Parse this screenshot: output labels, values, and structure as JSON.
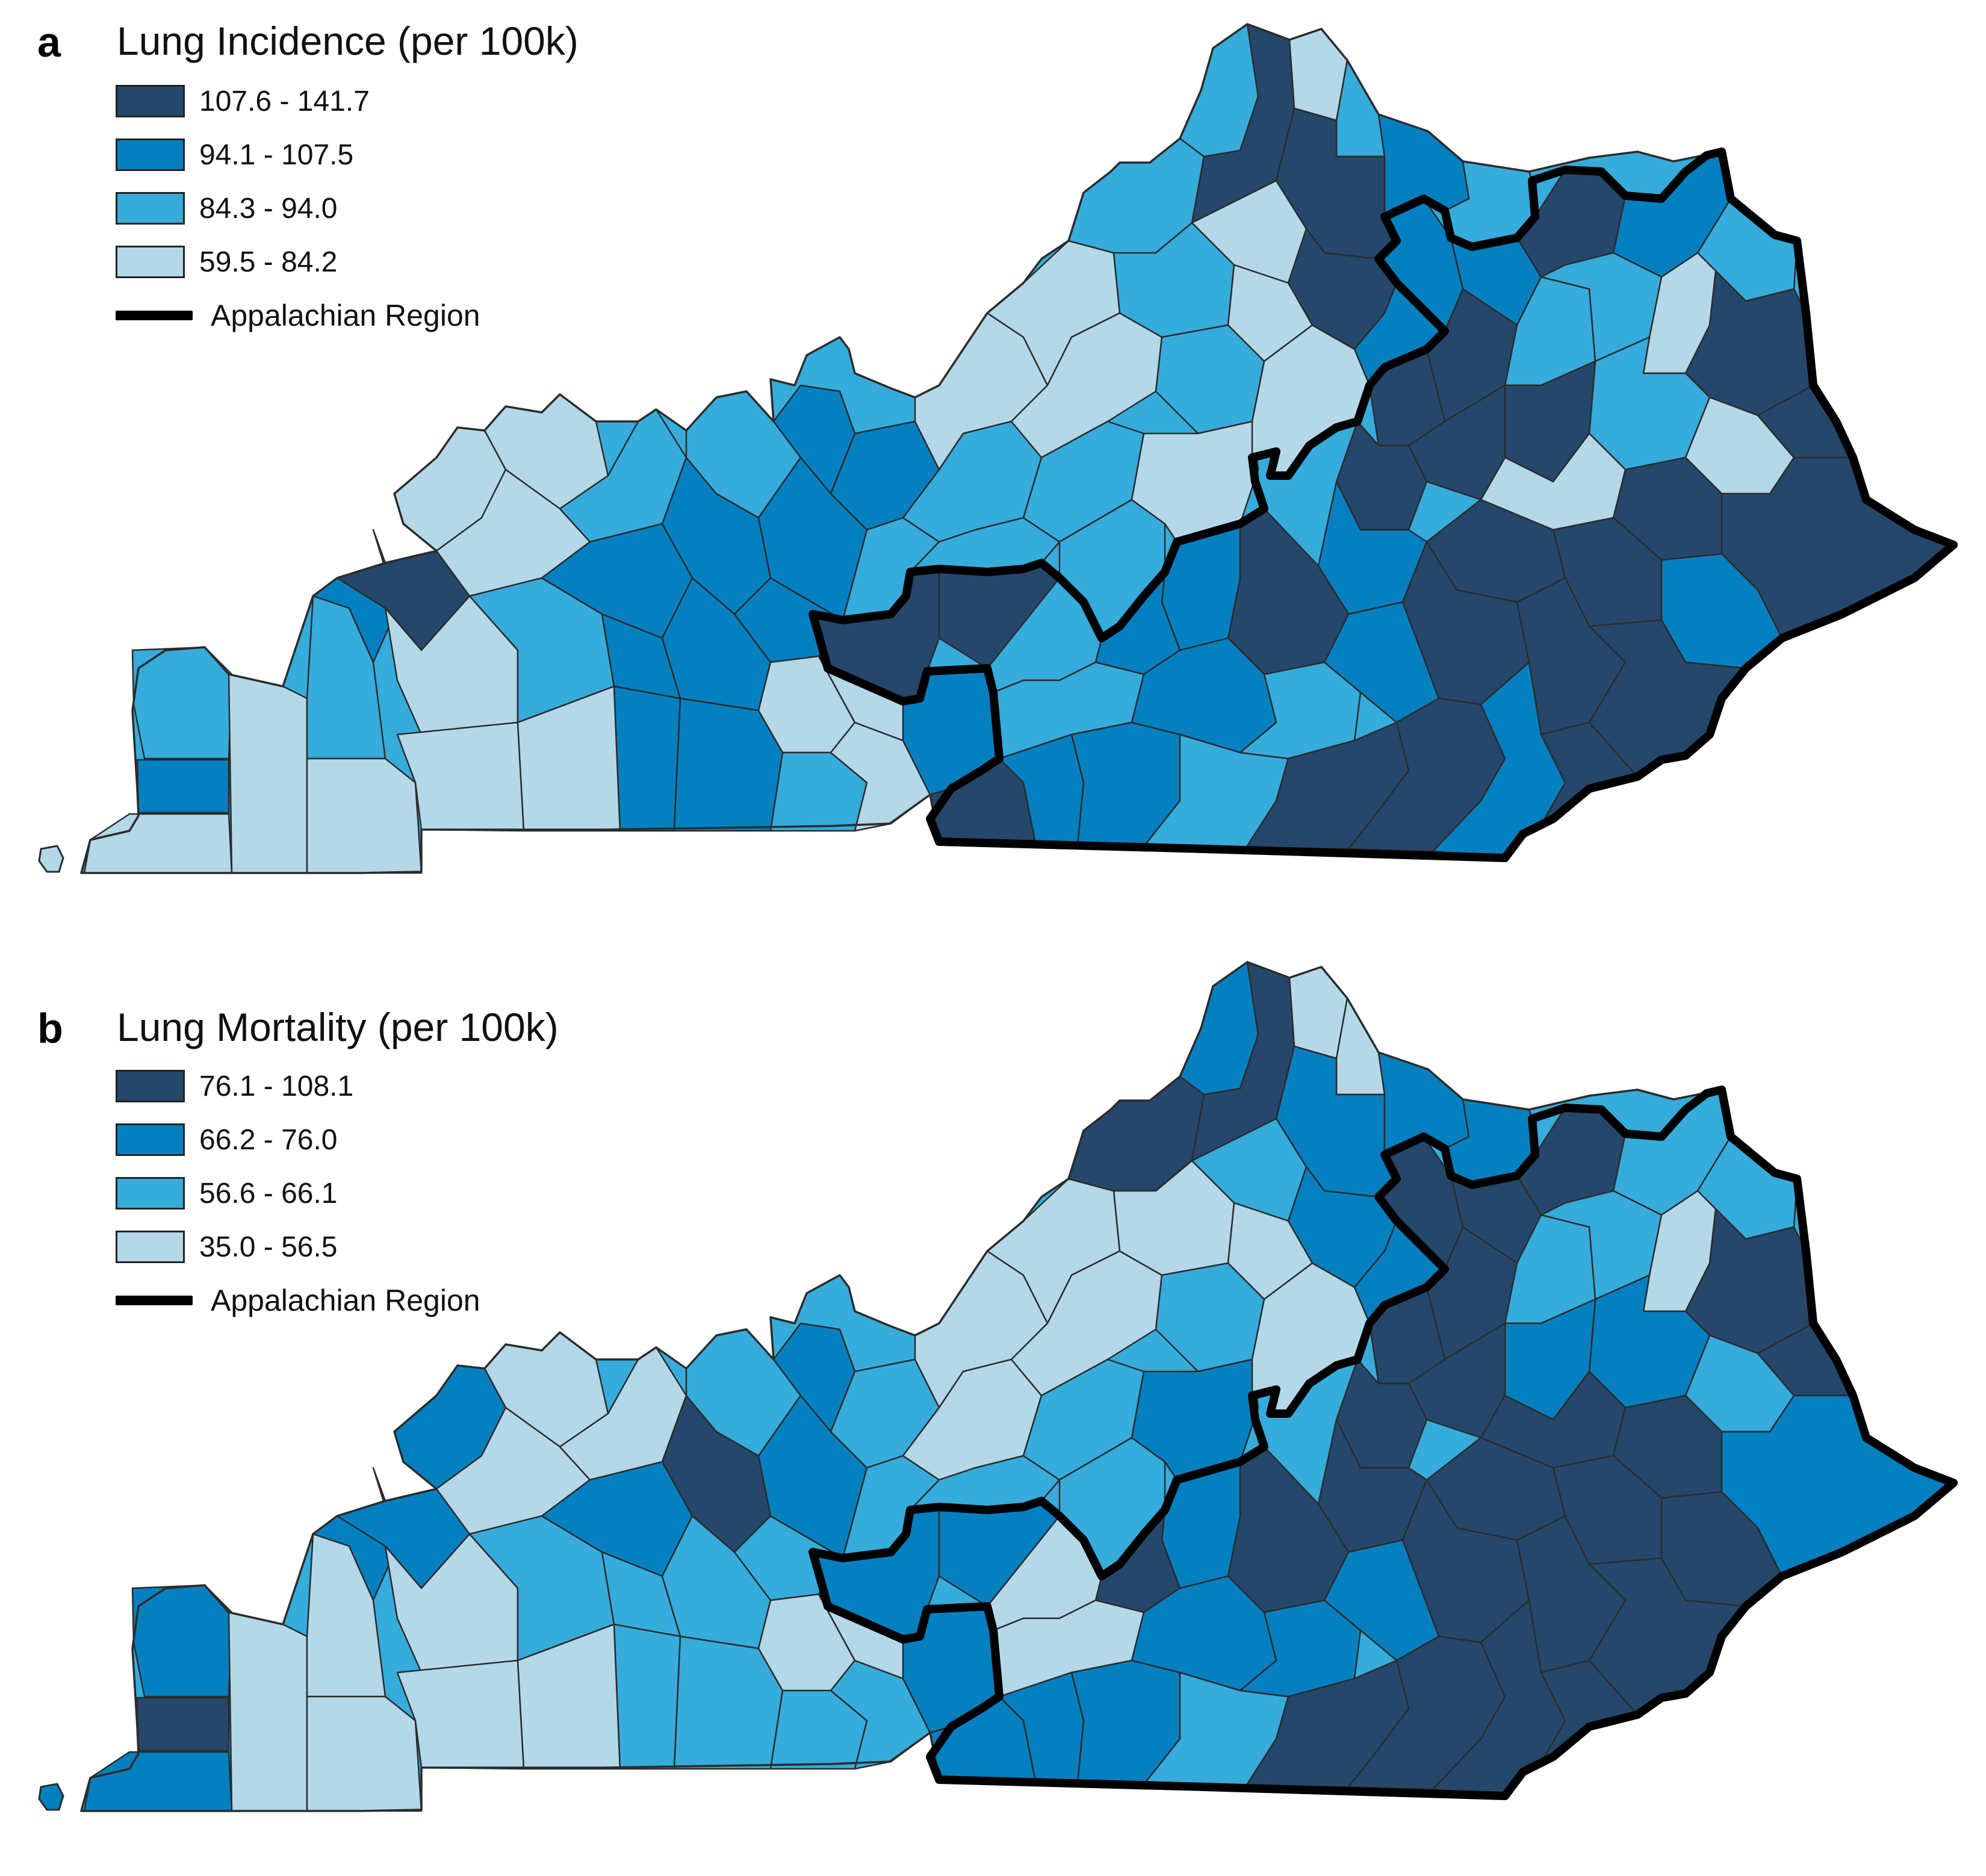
{
  "colors": {
    "darkest": "#25476b",
    "dark": "#0480c0",
    "medium": "#35acdc",
    "light": "#b4d8e8",
    "county_border": "#2b2b2b",
    "appalachian_outline": "#000000"
  },
  "panels": [
    {
      "letter": "a",
      "title": "Lung Incidence (per 100k)",
      "legend": [
        {
          "label": "107.6 - 141.7",
          "color": "#25476b"
        },
        {
          "label": "94.1 - 107.5",
          "color": "#0480c0"
        },
        {
          "label": "84.3 - 94.0",
          "color": "#35acdc"
        },
        {
          "label": "59.5 - 84.2",
          "color": "#b4d8e8"
        }
      ],
      "outline_label": "Appalachian Region"
    },
    {
      "letter": "b",
      "title": "Lung Mortality (per 100k)",
      "legend": [
        {
          "label": "76.1 - 108.1",
          "color": "#25476b"
        },
        {
          "label": "66.2 - 76.0",
          "color": "#0480c0"
        },
        {
          "label": "56.6 - 66.1",
          "color": "#35acdc"
        },
        {
          "label": "35.0 - 56.5",
          "color": "#b4d8e8"
        }
      ],
      "outline_label": "Appalachian Region"
    }
  ]
}
